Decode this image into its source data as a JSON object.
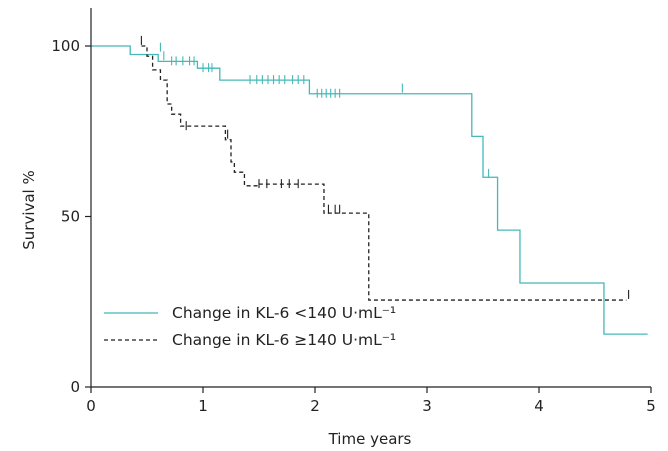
{
  "chart_data": {
    "type": "line",
    "subtype": "kaplan-meier step",
    "xlabel": "Time years",
    "ylabel": "Survival %",
    "xlim": [
      0,
      5
    ],
    "ylim": [
      0,
      100
    ],
    "xticks": [
      "0",
      "1",
      "2",
      "3",
      "4",
      "5"
    ],
    "yticks": [
      "0",
      "50",
      "100"
    ],
    "grid": false,
    "legend_position": "bottom-left",
    "series": [
      {
        "name": "Change in KL-6 <140 U·mL⁻¹",
        "color": "#45b8b8",
        "style": "solid",
        "steps": [
          [
            0,
            100
          ],
          [
            0.35,
            97.5
          ],
          [
            0.6,
            95.5
          ],
          [
            0.95,
            93.5
          ],
          [
            1.15,
            90
          ],
          [
            1.95,
            86
          ],
          [
            3.4,
            73.5
          ],
          [
            3.5,
            61.5
          ],
          [
            3.63,
            46
          ],
          [
            3.83,
            30.5
          ],
          [
            4.58,
            15.5
          ],
          [
            4.97,
            15.5
          ]
        ],
        "censored": [
          [
            0.62,
            99.5
          ],
          [
            0.65,
            97
          ],
          [
            0.72,
            95.5
          ],
          [
            0.76,
            95.5
          ],
          [
            0.82,
            95.5
          ],
          [
            0.88,
            95.5
          ],
          [
            0.92,
            95.5
          ],
          [
            1.0,
            93.5
          ],
          [
            1.05,
            93.5
          ],
          [
            1.08,
            93.5
          ],
          [
            1.42,
            90
          ],
          [
            1.48,
            90
          ],
          [
            1.53,
            90
          ],
          [
            1.58,
            90
          ],
          [
            1.63,
            90
          ],
          [
            1.68,
            90
          ],
          [
            1.73,
            90
          ],
          [
            1.8,
            90
          ],
          [
            1.85,
            90
          ],
          [
            1.9,
            90
          ],
          [
            2.02,
            86
          ],
          [
            2.06,
            86
          ],
          [
            2.1,
            86
          ],
          [
            2.14,
            86
          ],
          [
            2.18,
            86
          ],
          [
            2.22,
            86
          ],
          [
            2.78,
            87.5
          ],
          [
            3.55,
            62.5
          ]
        ]
      },
      {
        "name": "Change in KL-6 ≥140 U·mL⁻¹",
        "color": "#222222",
        "style": "dashed",
        "steps": [
          [
            0.45,
            100
          ],
          [
            0.5,
            97
          ],
          [
            0.55,
            93
          ],
          [
            0.62,
            90
          ],
          [
            0.68,
            83
          ],
          [
            0.72,
            80
          ],
          [
            0.8,
            76.5
          ],
          [
            1.2,
            72.5
          ],
          [
            1.25,
            66
          ],
          [
            1.28,
            63
          ],
          [
            1.37,
            59
          ],
          [
            1.5,
            59.5
          ],
          [
            1.65,
            59.5
          ],
          [
            2.08,
            51
          ],
          [
            2.48,
            25.5
          ],
          [
            4.78,
            25.5
          ]
        ],
        "censored": [
          [
            0.45,
            101.5
          ],
          [
            0.85,
            76.5
          ],
          [
            1.22,
            74
          ],
          [
            1.5,
            59.5
          ],
          [
            1.57,
            59.5
          ],
          [
            1.7,
            59.5
          ],
          [
            1.77,
            59.5
          ],
          [
            1.85,
            59.5
          ],
          [
            2.12,
            52
          ],
          [
            2.18,
            52
          ],
          [
            2.22,
            52
          ],
          [
            4.8,
            27
          ]
        ]
      }
    ]
  }
}
